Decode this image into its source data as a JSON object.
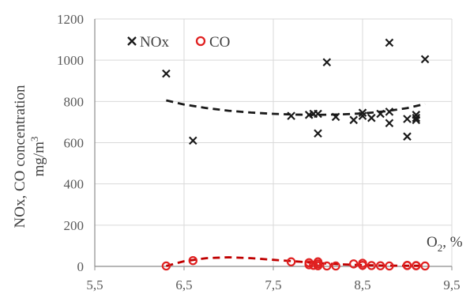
{
  "chart_data": {
    "type": "scatter",
    "xlabel_main": "O",
    "xlabel_sub": "2",
    "xlabel_unit": ", %",
    "ylabel_line1": "NOx, CO concentration",
    "ylabel_line2_main": "mg/m",
    "ylabel_line2_sup": "3",
    "xlim": [
      5.5,
      9.5
    ],
    "ylim": [
      0,
      1200
    ],
    "xticks": [
      5.5,
      6.5,
      7.5,
      8.5,
      9.5
    ],
    "xtick_labels": [
      "5,5",
      "6,5",
      "7,5",
      "8,5",
      "9,5"
    ],
    "yticks": [
      0,
      200,
      400,
      600,
      800,
      1000,
      1200
    ],
    "ytick_labels": [
      "0",
      "200",
      "400",
      "600",
      "800",
      "1000",
      "1200"
    ],
    "grid": true,
    "legend_position": "top-left",
    "series": [
      {
        "name": "NOx",
        "marker": "x",
        "color": "#1a1a1a",
        "points": [
          [
            6.3,
            935
          ],
          [
            6.6,
            610
          ],
          [
            7.7,
            730
          ],
          [
            7.9,
            735
          ],
          [
            7.95,
            740
          ],
          [
            8.0,
            740
          ],
          [
            8.0,
            645
          ],
          [
            8.1,
            990
          ],
          [
            8.2,
            725
          ],
          [
            8.4,
            710
          ],
          [
            8.5,
            745
          ],
          [
            8.5,
            730
          ],
          [
            8.6,
            720
          ],
          [
            8.7,
            740
          ],
          [
            8.8,
            695
          ],
          [
            8.8,
            750
          ],
          [
            8.8,
            1085
          ],
          [
            9.0,
            715
          ],
          [
            9.0,
            630
          ],
          [
            9.1,
            720
          ],
          [
            9.1,
            735
          ],
          [
            9.1,
            710
          ],
          [
            9.2,
            1005
          ]
        ],
        "trend": {
          "color": "#1a1a1a",
          "points": [
            [
              6.3,
              805
            ],
            [
              6.5,
              785
            ],
            [
              6.75,
              768
            ],
            [
              7.0,
              755
            ],
            [
              7.25,
              746
            ],
            [
              7.5,
              740
            ],
            [
              7.75,
              736
            ],
            [
              8.0,
              735
            ],
            [
              8.25,
              737
            ],
            [
              8.5,
              742
            ],
            [
              8.75,
              752
            ],
            [
              9.0,
              768
            ],
            [
              9.2,
              788
            ]
          ]
        }
      },
      {
        "name": "CO",
        "marker": "o",
        "color": "#e02020",
        "points": [
          [
            6.3,
            2
          ],
          [
            6.6,
            28
          ],
          [
            7.7,
            22
          ],
          [
            7.9,
            18
          ],
          [
            7.9,
            8
          ],
          [
            7.95,
            5
          ],
          [
            8.0,
            22
          ],
          [
            8.0,
            12
          ],
          [
            8.0,
            3
          ],
          [
            8.1,
            2
          ],
          [
            8.2,
            2
          ],
          [
            8.4,
            12
          ],
          [
            8.5,
            15
          ],
          [
            8.5,
            5
          ],
          [
            8.6,
            4
          ],
          [
            8.7,
            3
          ],
          [
            8.8,
            2
          ],
          [
            9.0,
            4
          ],
          [
            9.0,
            5
          ],
          [
            9.1,
            3
          ],
          [
            9.1,
            4
          ],
          [
            9.2,
            2
          ]
        ],
        "trend": {
          "color": "#c00000",
          "points": [
            [
              6.3,
              2
            ],
            [
              6.5,
              25
            ],
            [
              6.75,
              40
            ],
            [
              7.0,
              44
            ],
            [
              7.25,
              40
            ],
            [
              7.5,
              32
            ],
            [
              7.75,
              24
            ],
            [
              8.0,
              16
            ],
            [
              8.25,
              10
            ],
            [
              8.5,
              6
            ],
            [
              8.75,
              4
            ],
            [
              9.0,
              3
            ],
            [
              9.2,
              3
            ]
          ]
        }
      }
    ]
  }
}
